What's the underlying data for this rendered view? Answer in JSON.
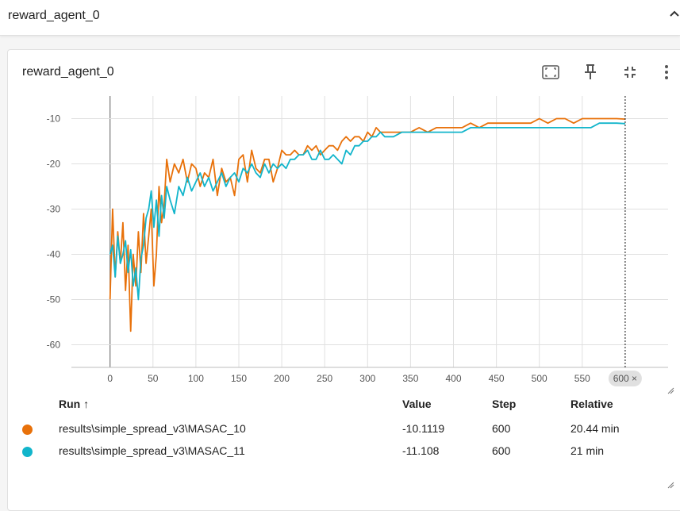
{
  "section": {
    "title": "reward_agent_0"
  },
  "card": {
    "title": "reward_agent_0"
  },
  "toolbar": {
    "fit_icon": "fit-domain-icon",
    "pin_icon": "pin-icon",
    "collapse_icon": "fullscreen-exit-icon",
    "more_icon": "more-vertical-icon"
  },
  "cursor_label": "600 ×",
  "table": {
    "headers": {
      "run": "Run ↑",
      "value": "Value",
      "step": "Step",
      "relative": "Relative"
    },
    "rows": [
      {
        "run": "results\\simple_spread_v3\\MASAC_10",
        "value": "-10.1119",
        "step": "600",
        "relative": "20.44 min",
        "color": "#e8710a"
      },
      {
        "run": "results\\simple_spread_v3\\MASAC_11",
        "value": "-11.108",
        "step": "600",
        "relative": "21 min",
        "color": "#12b5cb"
      }
    ]
  },
  "chart_data": {
    "type": "line",
    "title": "reward_agent_0",
    "xlabel": "",
    "ylabel": "",
    "xlim": [
      -45,
      650
    ],
    "ylim": [
      -65,
      -5
    ],
    "x_ticks": [
      0,
      50,
      100,
      150,
      200,
      250,
      300,
      350,
      400,
      450,
      500,
      550
    ],
    "y_ticks": [
      -10,
      -20,
      -30,
      -40,
      -50,
      -60
    ],
    "grid": true,
    "cursor_step": 600,
    "series": [
      {
        "name": "results\\simple_spread_v3\\MASAC_10",
        "color": "#e8710a",
        "x": [
          0,
          3,
          6,
          9,
          12,
          15,
          18,
          21,
          24,
          27,
          30,
          33,
          36,
          39,
          42,
          45,
          48,
          51,
          54,
          57,
          60,
          63,
          66,
          70,
          75,
          80,
          85,
          90,
          95,
          100,
          105,
          110,
          115,
          120,
          125,
          130,
          135,
          140,
          145,
          150,
          155,
          160,
          165,
          170,
          175,
          180,
          185,
          190,
          195,
          200,
          205,
          210,
          215,
          220,
          225,
          230,
          235,
          240,
          245,
          250,
          255,
          260,
          265,
          270,
          275,
          280,
          285,
          290,
          295,
          300,
          305,
          310,
          315,
          320,
          330,
          340,
          350,
          360,
          370,
          380,
          390,
          400,
          410,
          420,
          430,
          440,
          450,
          460,
          470,
          480,
          490,
          500,
          510,
          520,
          530,
          540,
          550,
          560,
          570,
          580,
          590,
          600
        ],
        "y": [
          -50,
          -30,
          -45,
          -35,
          -42,
          -33,
          -48,
          -38,
          -57,
          -40,
          -47,
          -35,
          -44,
          -31,
          -42,
          -36,
          -30,
          -47,
          -40,
          -25,
          -33,
          -29,
          -19,
          -24,
          -20,
          -22,
          -19,
          -24,
          -20,
          -21,
          -25,
          -22,
          -23,
          -19,
          -27,
          -21,
          -24,
          -23,
          -27,
          -19,
          -18,
          -24,
          -17,
          -21,
          -22,
          -19,
          -19,
          -24,
          -21,
          -17,
          -18,
          -18,
          -17,
          -18,
          -18,
          -16,
          -17,
          -16,
          -18,
          -17,
          -16,
          -16,
          -17,
          -15,
          -14,
          -15,
          -14,
          -14,
          -15,
          -13,
          -14,
          -12,
          -13,
          -13,
          -13,
          -13,
          -13,
          -12,
          -13,
          -12,
          -12,
          -12,
          -12,
          -11,
          -12,
          -11,
          -11,
          -11,
          -11,
          -11,
          -11,
          -10,
          -11,
          -10,
          -10,
          -11,
          -10,
          -10,
          -10,
          -10,
          -10,
          -10.1
        ]
      },
      {
        "name": "results\\simple_spread_v3\\MASAC_11",
        "color": "#12b5cb",
        "x": [
          0,
          3,
          6,
          9,
          12,
          15,
          18,
          21,
          24,
          27,
          30,
          33,
          36,
          39,
          42,
          45,
          48,
          51,
          54,
          57,
          60,
          63,
          66,
          70,
          75,
          80,
          85,
          90,
          95,
          100,
          105,
          110,
          115,
          120,
          125,
          130,
          135,
          140,
          145,
          150,
          155,
          160,
          165,
          170,
          175,
          180,
          185,
          190,
          195,
          200,
          205,
          210,
          215,
          220,
          225,
          230,
          235,
          240,
          245,
          250,
          255,
          260,
          265,
          270,
          275,
          280,
          285,
          290,
          295,
          300,
          305,
          310,
          315,
          320,
          330,
          340,
          350,
          360,
          370,
          380,
          390,
          400,
          410,
          420,
          430,
          440,
          450,
          460,
          470,
          480,
          490,
          500,
          510,
          520,
          530,
          540,
          550,
          560,
          570,
          580,
          590,
          600
        ],
        "y": [
          -40,
          -38,
          -45,
          -36,
          -42,
          -40,
          -37,
          -44,
          -39,
          -47,
          -43,
          -50,
          -41,
          -38,
          -32,
          -30,
          -26,
          -34,
          -28,
          -36,
          -27,
          -32,
          -25,
          -28,
          -31,
          -25,
          -27,
          -23,
          -26,
          -24,
          -22,
          -25,
          -23,
          -26,
          -24,
          -22,
          -25,
          -23,
          -22,
          -24,
          -21,
          -22,
          -20,
          -22,
          -23,
          -20,
          -22,
          -20,
          -21,
          -20,
          -21,
          -19,
          -19,
          -18,
          -18,
          -17,
          -19,
          -19,
          -17,
          -19,
          -19,
          -18,
          -19,
          -20,
          -17,
          -18,
          -16,
          -16,
          -15,
          -15,
          -14,
          -14,
          -13,
          -14,
          -14,
          -13,
          -13,
          -13,
          -13,
          -13,
          -13,
          -13,
          -13,
          -12,
          -12,
          -12,
          -12,
          -12,
          -12,
          -12,
          -12,
          -12,
          -12,
          -12,
          -12,
          -12,
          -12,
          -12,
          -11,
          -11,
          -11,
          -11.1
        ]
      }
    ]
  }
}
